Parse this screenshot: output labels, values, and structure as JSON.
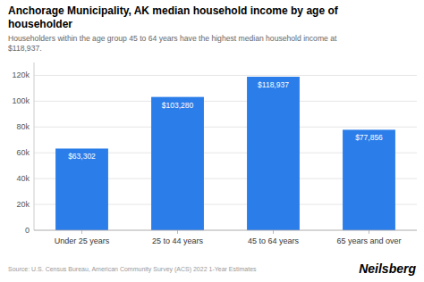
{
  "chart_data": {
    "type": "bar",
    "title": [
      "Anchorage Municipality, AK median household income by age of",
      "householder"
    ],
    "subtitle": [
      "Householders within the age group 45 to 64 years have the highest median household income at",
      "$118,937."
    ],
    "annotations": [
      "Source: U.S. Census Bureau, American Community Survey (ACS) 2022 1-Year Estimates",
      "Neilsberg"
    ],
    "categories": [
      "Under 25 years",
      "25 to 44 years",
      "45 to 64 years",
      "65 years and over"
    ],
    "values": [
      63302,
      103280,
      118937,
      77856
    ],
    "value_labels": [
      "$63,302",
      "$103,280",
      "$118,937",
      "$77,856"
    ],
    "data_labels": true,
    "color": "#2b7de9",
    "ylim": [
      0,
      130000
    ],
    "yticks": [
      0,
      {
        "value": 20000,
        "label": "20k"
      },
      {
        "value": 40000,
        "label": "40k"
      },
      {
        "value": 60000,
        "label": "60k"
      },
      {
        "value": 80000,
        "label": "80k"
      },
      {
        "value": 100000,
        "label": "100k"
      },
      {
        "value": 120000,
        "label": "120k"
      }
    ],
    "grid": true
  }
}
